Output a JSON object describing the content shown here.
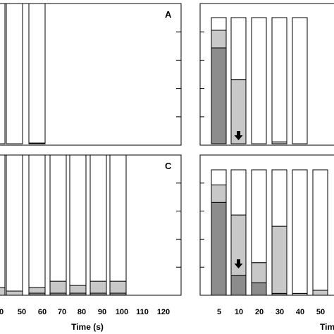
{
  "colors": {
    "dark": "#8c8c8c",
    "light": "#c8c8c8",
    "white": "#ffffff",
    "frame": "#000000"
  },
  "chart_data": [
    {
      "panel": "A",
      "type": "bar",
      "stacked": true,
      "normalized_ylim": [
        0,
        1
      ],
      "categories": [
        "40",
        "50",
        "60"
      ],
      "series": [
        {
          "values": [
            0,
            0,
            0.005
          ]
        },
        {
          "values": [
            0,
            0,
            0
          ]
        },
        {
          "values": [
            1,
            1,
            0.995
          ]
        }
      ]
    },
    {
      "panel": "B",
      "type": "bar",
      "stacked": true,
      "normalized_ylim": [
        0,
        1
      ],
      "categories": [
        "5",
        "10",
        "20",
        "30",
        "40"
      ],
      "series": [
        {
          "values": [
            0.76,
            0,
            0,
            0,
            0
          ]
        },
        {
          "values": [
            0.14,
            0.51,
            0,
            0.015,
            0
          ]
        },
        {
          "values": [
            0.1,
            0.49,
            1,
            0.985,
            1
          ]
        }
      ],
      "annotations": [
        {
          "type": "arrow-down",
          "category": "10"
        }
      ]
    },
    {
      "panel": "C",
      "type": "bar",
      "stacked": true,
      "normalized_ylim": [
        0,
        1
      ],
      "categories": [
        "40",
        "50",
        "60",
        "70",
        "80",
        "90",
        "100"
      ],
      "series": [
        {
          "values": [
            0,
            0,
            0.015,
            0.015,
            0.015,
            0.015,
            0.015
          ]
        },
        {
          "values": [
            0.055,
            0.03,
            0.04,
            0.085,
            0.055,
            0.085,
            0.085
          ]
        },
        {
          "values": [
            0.945,
            0.97,
            0.945,
            0.9,
            0.93,
            0.9,
            0.9
          ]
        }
      ],
      "xticks": [
        "0",
        "50",
        "60",
        "70",
        "80",
        "90",
        "100",
        "110",
        "120"
      ],
      "xlabel": "Time (s)"
    },
    {
      "panel": "D",
      "type": "bar",
      "stacked": true,
      "normalized_ylim": [
        0,
        1
      ],
      "categories": [
        "5",
        "10",
        "20",
        "30",
        "40",
        "50"
      ],
      "series": [
        {
          "values": [
            0.74,
            0.16,
            0.1,
            0.015,
            0,
            0
          ]
        },
        {
          "values": [
            0.14,
            0.48,
            0.16,
            0.535,
            0.015,
            0.04
          ]
        },
        {
          "values": [
            0.12,
            0.36,
            0.74,
            0.45,
            0.985,
            0.96
          ]
        }
      ],
      "annotations": [
        {
          "type": "arrow-down",
          "category": "10"
        }
      ],
      "xticks": [
        "5",
        "10",
        "20",
        "30",
        "40",
        "50"
      ],
      "xlabel": "Tim"
    }
  ]
}
